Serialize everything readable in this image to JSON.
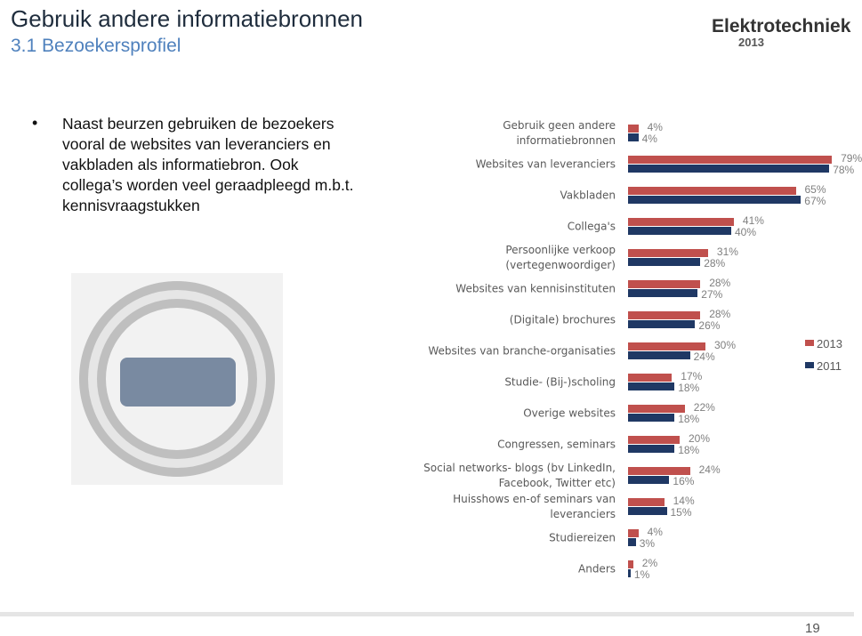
{
  "header": {
    "title": "Gebruik andere informatiebronnen",
    "subtitle": "3.1 Bezoekersprofiel"
  },
  "logo": {
    "name": "Elektrotechniek",
    "year": "2013"
  },
  "bullet": "Naast beurzen gebruiken de bezoekers vooral de websites van leveranciers en vakbladen als informatiebron. Ook collega’s worden veel geraadpleegd m.b.t. kennisvraagstukken",
  "page_number": "19",
  "chart_data": {
    "type": "bar",
    "orientation": "horizontal",
    "categories": [
      "Gebruik geen andere informatiebronnen",
      "Websites van leveranciers",
      "Vakbladen",
      "Collega's",
      "Persoonlijke verkoop (vertegenwoordiger)",
      "Websites van kennisinstituten",
      "(Digitale) brochures",
      "Websites van branche-organisaties",
      "Studie- (Bij-)scholing",
      "Overige websites",
      "Congressen, seminars",
      "Social networks- blogs (bv LinkedIn, Facebook, Twitter etc)",
      "Huisshows en-of seminars van leveranciers",
      "Studiereizen",
      "Anders"
    ],
    "series": [
      {
        "name": "2013",
        "color": "#c0504d",
        "values": [
          4,
          79,
          65,
          41,
          31,
          28,
          28,
          30,
          17,
          22,
          20,
          24,
          14,
          4,
          2
        ],
        "value_labels": [
          "4%",
          "79%",
          "65%",
          "41%",
          "31%",
          "28%",
          "28%",
          "30%",
          "17%",
          "22%",
          "20%",
          "24%",
          "14%",
          "4%",
          "2%"
        ]
      },
      {
        "name": "2011",
        "color": "#1f3864",
        "values": [
          4,
          78,
          67,
          40,
          28,
          27,
          26,
          24,
          18,
          18,
          18,
          16,
          15,
          3,
          1
        ],
        "value_labels": [
          "4%",
          "78%",
          "67%",
          "40%",
          "28%",
          "27%",
          "26%",
          "24%",
          "18%",
          "18%",
          "18%",
          "16%",
          "15%",
          "3%",
          "1%"
        ]
      }
    ],
    "legend": "right"
  }
}
